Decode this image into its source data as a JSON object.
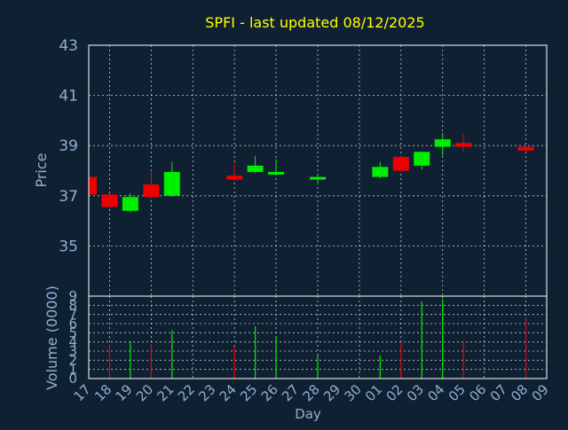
{
  "title": "SPFI - last updated 08/12/2025",
  "colors": {
    "background": "#102033",
    "plot_border": "#ffffff",
    "grid": "#ffffff",
    "title": "#ffff00",
    "axis_text": "#8fb0cf",
    "up": "#00ee00",
    "down": "#ee0000"
  },
  "chart_data": [
    {
      "type": "candlestick",
      "ylabel": "Price",
      "ylim": [
        33,
        43
      ],
      "yticks": [
        "35",
        "37",
        "39",
        "41",
        "43"
      ],
      "grid": true,
      "candles": [
        {
          "day": "17",
          "open": 37.75,
          "high": 37.8,
          "low": 37.0,
          "close": 37.05
        },
        {
          "day": "18",
          "open": 37.05,
          "high": 37.1,
          "low": 36.5,
          "close": 36.55
        },
        {
          "day": "19",
          "open": 36.4,
          "high": 37.1,
          "low": 36.35,
          "close": 36.95
        },
        {
          "day": "20",
          "open": 37.45,
          "high": 38.0,
          "low": 36.9,
          "close": 36.95
        },
        {
          "day": "21",
          "open": 37.0,
          "high": 38.35,
          "low": 36.95,
          "close": 37.95
        },
        {
          "day": "24",
          "open": 37.8,
          "high": 38.25,
          "low": 37.6,
          "close": 37.65
        },
        {
          "day": "25",
          "open": 37.95,
          "high": 38.6,
          "low": 37.9,
          "close": 38.2
        },
        {
          "day": "26",
          "open": 37.9,
          "high": 38.45,
          "low": 37.85,
          "close": 37.95
        },
        {
          "day": "28",
          "open": 37.65,
          "high": 37.8,
          "low": 37.45,
          "close": 37.75
        },
        {
          "day": "01",
          "open": 37.75,
          "high": 38.35,
          "low": 37.7,
          "close": 38.15
        },
        {
          "day": "02",
          "open": 38.55,
          "high": 38.6,
          "low": 37.95,
          "close": 38.0
        },
        {
          "day": "03",
          "open": 38.2,
          "high": 38.75,
          "low": 38.05,
          "close": 38.75
        },
        {
          "day": "04",
          "open": 38.95,
          "high": 39.5,
          "low": 38.6,
          "close": 39.25
        },
        {
          "day": "05",
          "open": 39.1,
          "high": 39.45,
          "low": 38.75,
          "close": 38.95
        },
        {
          "day": "08",
          "open": 38.95,
          "high": 39.0,
          "low": 38.75,
          "close": 38.8
        }
      ]
    },
    {
      "type": "bar",
      "xlabel": "Day",
      "ylabel": "Volume (0000)",
      "ylim": [
        0,
        9
      ],
      "yticks": [
        "0",
        "1",
        "2",
        "3",
        "4",
        "5",
        "6",
        "7",
        "8",
        "9"
      ],
      "grid": true,
      "categories": [
        "17",
        "18",
        "19",
        "20",
        "21",
        "22",
        "23",
        "24",
        "25",
        "26",
        "27",
        "28",
        "29",
        "30",
        "01",
        "02",
        "03",
        "04",
        "05",
        "06",
        "07",
        "08",
        "09"
      ],
      "bars": [
        {
          "day": "18",
          "value": 3.7,
          "direction": "down"
        },
        {
          "day": "19",
          "value": 4.1,
          "direction": "up"
        },
        {
          "day": "20",
          "value": 3.8,
          "direction": "down"
        },
        {
          "day": "21",
          "value": 5.3,
          "direction": "up"
        },
        {
          "day": "24",
          "value": 3.5,
          "direction": "down"
        },
        {
          "day": "25",
          "value": 5.7,
          "direction": "up"
        },
        {
          "day": "26",
          "value": 4.5,
          "direction": "up"
        },
        {
          "day": "28",
          "value": 2.5,
          "direction": "up"
        },
        {
          "day": "01",
          "value": 2.5,
          "direction": "up"
        },
        {
          "day": "02",
          "value": 4.0,
          "direction": "down"
        },
        {
          "day": "03",
          "value": 8.4,
          "direction": "up"
        },
        {
          "day": "04",
          "value": 8.7,
          "direction": "up"
        },
        {
          "day": "05",
          "value": 4.1,
          "direction": "down"
        },
        {
          "day": "08",
          "value": 6.5,
          "direction": "down"
        }
      ]
    }
  ]
}
